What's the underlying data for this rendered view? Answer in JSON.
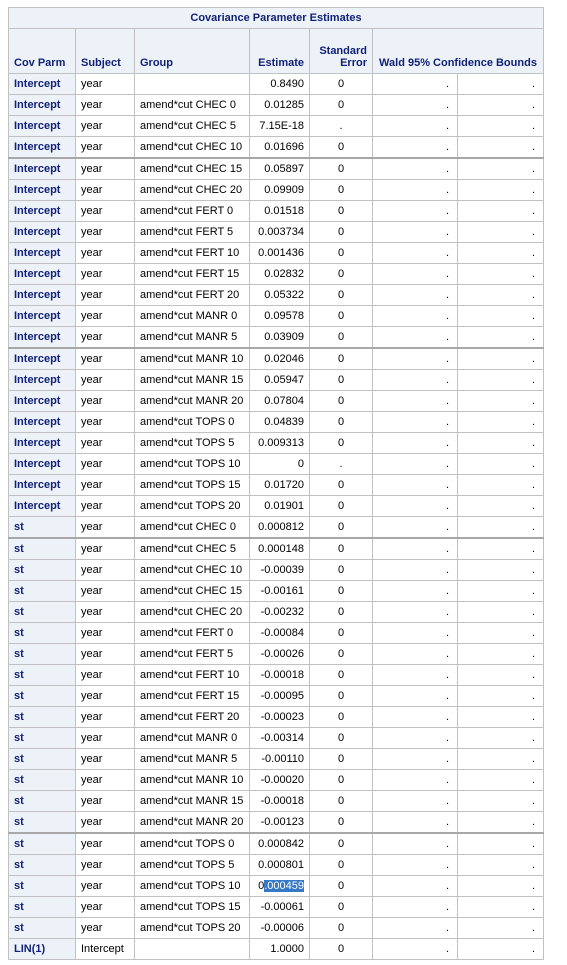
{
  "table": {
    "title": "Covariance Parameter Estimates",
    "headers": {
      "cov_parm": "Cov Parm",
      "subject": "Subject",
      "group": "Group",
      "estimate": "Estimate",
      "std_error_line1": "Standard",
      "std_error_line2": "Error",
      "wald": "Wald 95% Confidence Bounds"
    },
    "rows": [
      {
        "cov": "Intercept",
        "subject": "year",
        "group": "",
        "estimate": "0.8490",
        "se": "0",
        "lower": ".",
        "upper": "."
      },
      {
        "cov": "Intercept",
        "subject": "year",
        "group": "amend*cut CHEC 0",
        "estimate": "0.01285",
        "se": "0",
        "lower": ".",
        "upper": "."
      },
      {
        "cov": "Intercept",
        "subject": "year",
        "group": "amend*cut CHEC 5",
        "estimate": "7.15E-18",
        "se": ".",
        "lower": ".",
        "upper": "."
      },
      {
        "cov": "Intercept",
        "subject": "year",
        "group": "amend*cut CHEC 10",
        "estimate": "0.01696",
        "se": "0",
        "lower": ".",
        "upper": "."
      },
      {
        "cov": "Intercept",
        "subject": "year",
        "group": "amend*cut CHEC 15",
        "estimate": "0.05897",
        "se": "0",
        "lower": ".",
        "upper": "."
      },
      {
        "cov": "Intercept",
        "subject": "year",
        "group": "amend*cut CHEC 20",
        "estimate": "0.09909",
        "se": "0",
        "lower": ".",
        "upper": "."
      },
      {
        "cov": "Intercept",
        "subject": "year",
        "group": "amend*cut FERT 0",
        "estimate": "0.01518",
        "se": "0",
        "lower": ".",
        "upper": "."
      },
      {
        "cov": "Intercept",
        "subject": "year",
        "group": "amend*cut FERT 5",
        "estimate": "0.003734",
        "se": "0",
        "lower": ".",
        "upper": "."
      },
      {
        "cov": "Intercept",
        "subject": "year",
        "group": "amend*cut FERT 10",
        "estimate": "0.001436",
        "se": "0",
        "lower": ".",
        "upper": "."
      },
      {
        "cov": "Intercept",
        "subject": "year",
        "group": "amend*cut FERT 15",
        "estimate": "0.02832",
        "se": "0",
        "lower": ".",
        "upper": "."
      },
      {
        "cov": "Intercept",
        "subject": "year",
        "group": "amend*cut FERT 20",
        "estimate": "0.05322",
        "se": "0",
        "lower": ".",
        "upper": "."
      },
      {
        "cov": "Intercept",
        "subject": "year",
        "group": "amend*cut MANR 0",
        "estimate": "0.09578",
        "se": "0",
        "lower": ".",
        "upper": "."
      },
      {
        "cov": "Intercept",
        "subject": "year",
        "group": "amend*cut MANR 5",
        "estimate": "0.03909",
        "se": "0",
        "lower": ".",
        "upper": "."
      },
      {
        "cov": "Intercept",
        "subject": "year",
        "group": "amend*cut MANR 10",
        "estimate": "0.02046",
        "se": "0",
        "lower": ".",
        "upper": "."
      },
      {
        "cov": "Intercept",
        "subject": "year",
        "group": "amend*cut MANR 15",
        "estimate": "0.05947",
        "se": "0",
        "lower": ".",
        "upper": "."
      },
      {
        "cov": "Intercept",
        "subject": "year",
        "group": "amend*cut MANR 20",
        "estimate": "0.07804",
        "se": "0",
        "lower": ".",
        "upper": "."
      },
      {
        "cov": "Intercept",
        "subject": "year",
        "group": "amend*cut TOPS 0",
        "estimate": "0.04839",
        "se": "0",
        "lower": ".",
        "upper": "."
      },
      {
        "cov": "Intercept",
        "subject": "year",
        "group": "amend*cut TOPS 5",
        "estimate": "0.009313",
        "se": "0",
        "lower": ".",
        "upper": "."
      },
      {
        "cov": "Intercept",
        "subject": "year",
        "group": "amend*cut TOPS 10",
        "estimate": "0",
        "se": ".",
        "lower": ".",
        "upper": "."
      },
      {
        "cov": "Intercept",
        "subject": "year",
        "group": "amend*cut TOPS 15",
        "estimate": "0.01720",
        "se": "0",
        "lower": ".",
        "upper": "."
      },
      {
        "cov": "Intercept",
        "subject": "year",
        "group": "amend*cut TOPS 20",
        "estimate": "0.01901",
        "se": "0",
        "lower": ".",
        "upper": "."
      },
      {
        "cov": "st",
        "subject": "year",
        "group": "amend*cut CHEC 0",
        "estimate": "0.000812",
        "se": "0",
        "lower": ".",
        "upper": "."
      },
      {
        "cov": "st",
        "subject": "year",
        "group": "amend*cut CHEC 5",
        "estimate": "0.000148",
        "se": "0",
        "lower": ".",
        "upper": "."
      },
      {
        "cov": "st",
        "subject": "year",
        "group": "amend*cut CHEC 10",
        "estimate": "-0.00039",
        "se": "0",
        "lower": ".",
        "upper": "."
      },
      {
        "cov": "st",
        "subject": "year",
        "group": "amend*cut CHEC 15",
        "estimate": "-0.00161",
        "se": "0",
        "lower": ".",
        "upper": "."
      },
      {
        "cov": "st",
        "subject": "year",
        "group": "amend*cut CHEC 20",
        "estimate": "-0.00232",
        "se": "0",
        "lower": ".",
        "upper": "."
      },
      {
        "cov": "st",
        "subject": "year",
        "group": "amend*cut FERT 0",
        "estimate": "-0.00084",
        "se": "0",
        "lower": ".",
        "upper": "."
      },
      {
        "cov": "st",
        "subject": "year",
        "group": "amend*cut FERT 5",
        "estimate": "-0.00026",
        "se": "0",
        "lower": ".",
        "upper": "."
      },
      {
        "cov": "st",
        "subject": "year",
        "group": "amend*cut FERT 10",
        "estimate": "-0.00018",
        "se": "0",
        "lower": ".",
        "upper": "."
      },
      {
        "cov": "st",
        "subject": "year",
        "group": "amend*cut FERT 15",
        "estimate": "-0.00095",
        "se": "0",
        "lower": ".",
        "upper": "."
      },
      {
        "cov": "st",
        "subject": "year",
        "group": "amend*cut FERT 20",
        "estimate": "-0.00023",
        "se": "0",
        "lower": ".",
        "upper": "."
      },
      {
        "cov": "st",
        "subject": "year",
        "group": "amend*cut MANR 0",
        "estimate": "-0.00314",
        "se": "0",
        "lower": ".",
        "upper": "."
      },
      {
        "cov": "st",
        "subject": "year",
        "group": "amend*cut MANR 5",
        "estimate": "-0.00110",
        "se": "0",
        "lower": ".",
        "upper": "."
      },
      {
        "cov": "st",
        "subject": "year",
        "group": "amend*cut MANR 10",
        "estimate": "-0.00020",
        "se": "0",
        "lower": ".",
        "upper": "."
      },
      {
        "cov": "st",
        "subject": "year",
        "group": "amend*cut MANR 15",
        "estimate": "-0.00018",
        "se": "0",
        "lower": ".",
        "upper": "."
      },
      {
        "cov": "st",
        "subject": "year",
        "group": "amend*cut MANR 20",
        "estimate": "-0.00123",
        "se": "0",
        "lower": ".",
        "upper": "."
      },
      {
        "cov": "st",
        "subject": "year",
        "group": "amend*cut TOPS 0",
        "estimate": "0.000842",
        "se": "0",
        "lower": ".",
        "upper": "."
      },
      {
        "cov": "st",
        "subject": "year",
        "group": "amend*cut TOPS 5",
        "estimate": "0.000801",
        "se": "0",
        "lower": ".",
        "upper": "."
      },
      {
        "cov": "st",
        "subject": "year",
        "group": "amend*cut TOPS 10",
        "estimate": "0.000459",
        "estimate_prefix": "0",
        "estimate_selected": ".000459",
        "se": "0",
        "lower": ".",
        "upper": "."
      },
      {
        "cov": "st",
        "subject": "year",
        "group": "amend*cut TOPS 15",
        "estimate": "-0.00061",
        "se": "0",
        "lower": ".",
        "upper": "."
      },
      {
        "cov": "st",
        "subject": "year",
        "group": "amend*cut TOPS 20",
        "estimate": "-0.00006",
        "se": "0",
        "lower": ".",
        "upper": "."
      },
      {
        "cov": "LIN(1)",
        "subject": "Intercept",
        "group": "",
        "estimate": "1.0000",
        "se": "0",
        "lower": ".",
        "upper": "."
      }
    ]
  }
}
